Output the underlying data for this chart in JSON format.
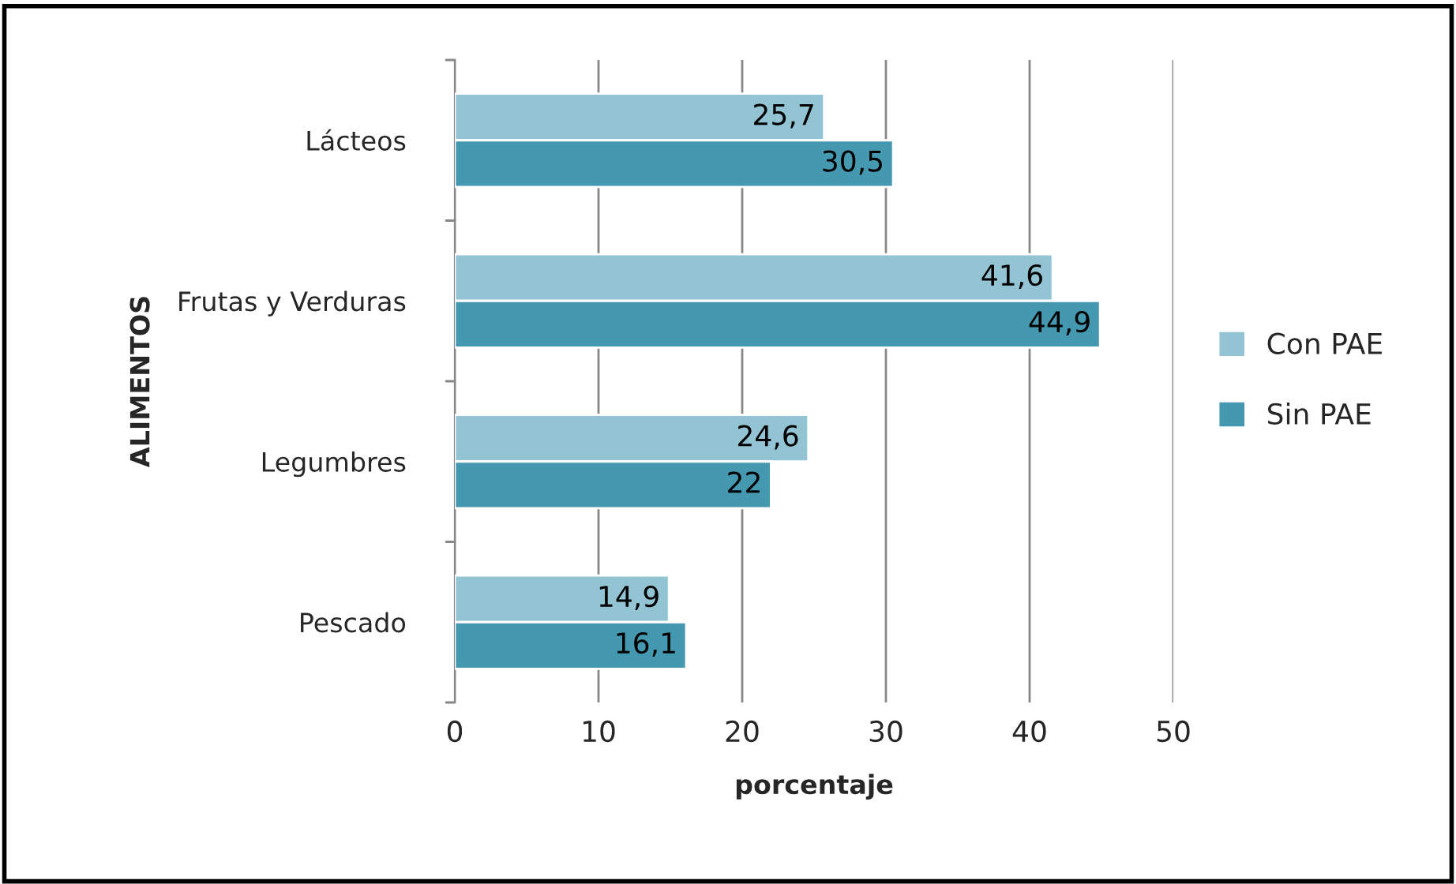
{
  "chart_data": {
    "type": "bar",
    "orientation": "horizontal",
    "xlabel": "porcentaje",
    "ylabel": "ALIMENTOS",
    "categories": [
      "Lácteos",
      "Frutas y Verduras",
      "Legumbres",
      "Pescado"
    ],
    "series": [
      {
        "name": "Con PAE",
        "color": "#93c4d4",
        "values": [
          25.7,
          41.6,
          24.6,
          14.9
        ],
        "value_labels": [
          "25,7",
          "41,6",
          "24,6",
          "14,9"
        ]
      },
      {
        "name": "Sin PAE",
        "color": "#4499b0",
        "values": [
          30.5,
          44.9,
          22,
          16.1
        ],
        "value_labels": [
          "30,5",
          "44,9",
          "22",
          "16,1"
        ]
      }
    ],
    "xlim": [
      0,
      50
    ],
    "xticks": [
      0,
      10,
      20,
      30,
      40,
      50
    ],
    "grid": "x",
    "legend": "right"
  }
}
